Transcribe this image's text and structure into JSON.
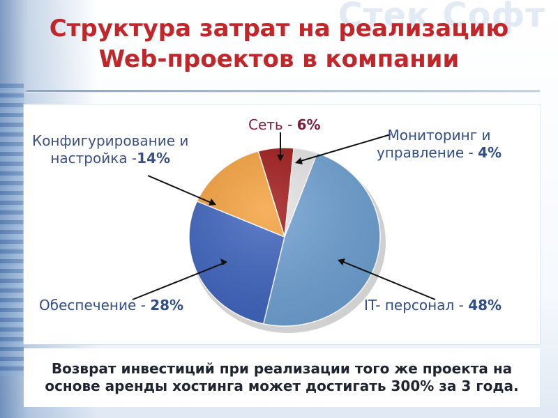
{
  "watermark": "Стек Софт",
  "title_lines": [
    "Структура затрат на реализацию",
    "Web-проектов в компании"
  ],
  "footer_lines": [
    "Возврат инвестиций при реализации того же проекта на",
    "основе аренды хостинга может достигать 300% за 3 года."
  ],
  "chart_data": {
    "type": "pie",
    "title": "Структура затрат на реализацию Web-проектов в компании",
    "slices": [
      {
        "label_lines": [
          "Сеть - "
        ],
        "pct_text": "6%",
        "value": 6,
        "color": "#a01818"
      },
      {
        "label_lines": [
          "Мониторинг и",
          "управление - "
        ],
        "pct_text": "4%",
        "value": 4,
        "color": "#e6e6e6"
      },
      {
        "label_lines": [
          "IT- персонал - "
        ],
        "pct_text": "48%",
        "value": 48,
        "color": "#6fa2d4"
      },
      {
        "label_lines": [
          "Обеспечение - "
        ],
        "pct_text": "28%",
        "value": 28,
        "color": "#3f65bf"
      },
      {
        "label_lines": [
          "Конфигурирование и",
          "настройка -"
        ],
        "pct_text": "14%",
        "value": 14,
        "color": "#f6a13c"
      }
    ]
  }
}
